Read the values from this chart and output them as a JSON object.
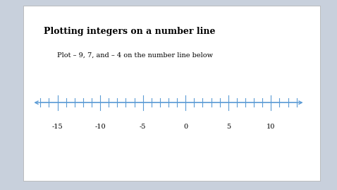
{
  "title": "Plotting integers on a number line",
  "subtitle": "Plot – 9, 7, and – 4 on the number line below",
  "bg_color": "#ffffff",
  "outer_bg": "#c8d0dc",
  "x_min": -17,
  "x_max": 13,
  "tick_labels": [
    -15,
    -10,
    -5,
    0,
    5,
    10
  ],
  "line_color": "#5b9bd5",
  "label_color": "#000000",
  "title_fontsize": 9,
  "subtitle_fontsize": 7,
  "tick_label_fontsize": 7
}
